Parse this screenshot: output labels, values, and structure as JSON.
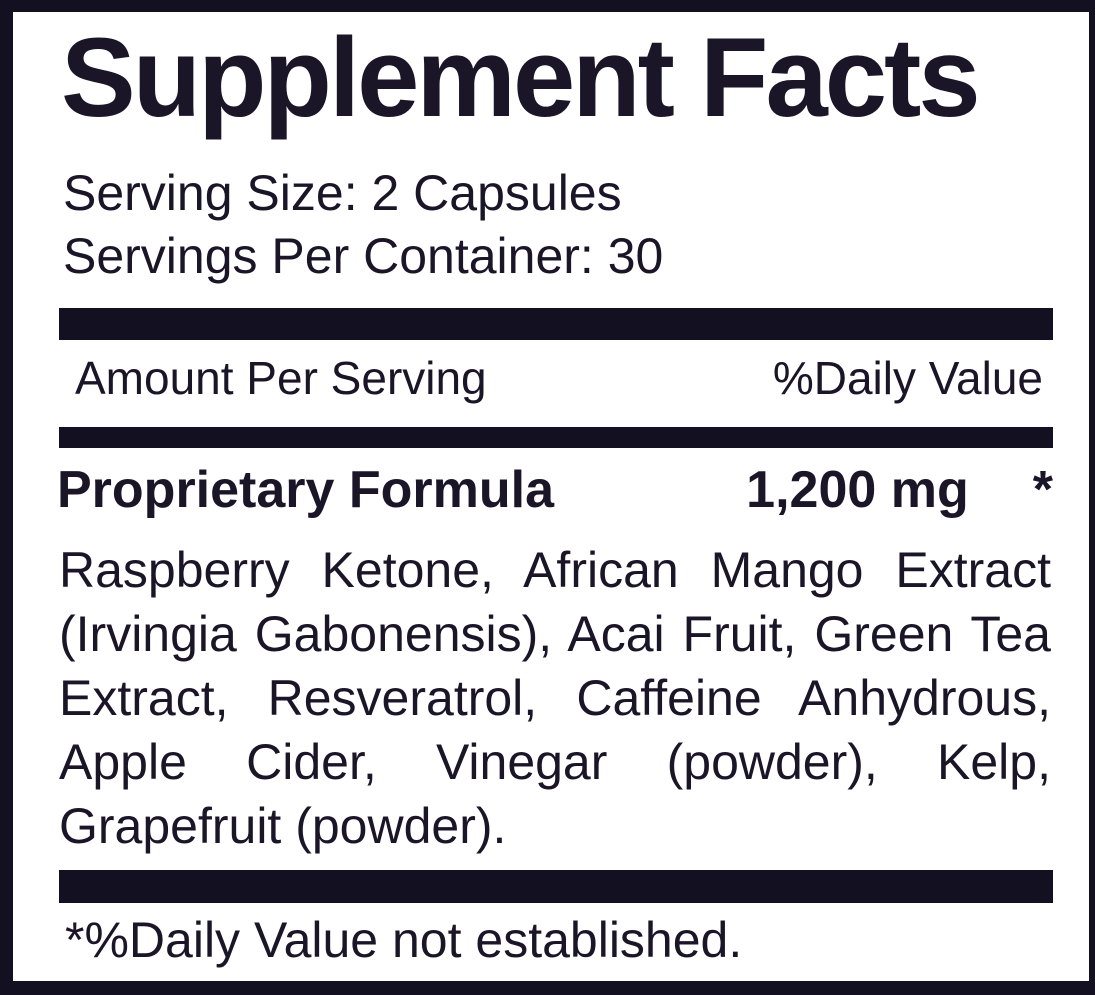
{
  "label": {
    "title": "Supplement Facts",
    "serving_size": "Serving Size: 2 Capsules",
    "servings_per_container": "Servings Per Container: 30",
    "columns": {
      "amount": "Amount Per Serving",
      "daily_value": "%Daily Value"
    },
    "formula": {
      "name": "Proprietary Formula",
      "amount": "1,200 mg",
      "daily_value_symbol": "*"
    },
    "ingredients_lines": [
      "Raspberry Ketone, African Mango Extract",
      "(Irvingia Gabonensis), Acai Fruit, Green Tea",
      "Extract, Resveratrol, Caffeine Anhydrous,",
      "Apple Cider, Vinegar (powder), Kelp,",
      "Grapefruit (powder)."
    ],
    "ingredients_full_text": "Raspberry Ketone, African Mango Extract (Irvingia Gabonensis), Acai Fruit, Green Tea Extract, Resveratrol, Caffeine Anhydrous, Apple Cider, Vinegar (powder), Kelp, Grapefruit (powder).",
    "footnote": "*%Daily Value not established.",
    "colors": {
      "ink": "#131021",
      "text": "#1a1628",
      "background": "#ffffff"
    }
  }
}
